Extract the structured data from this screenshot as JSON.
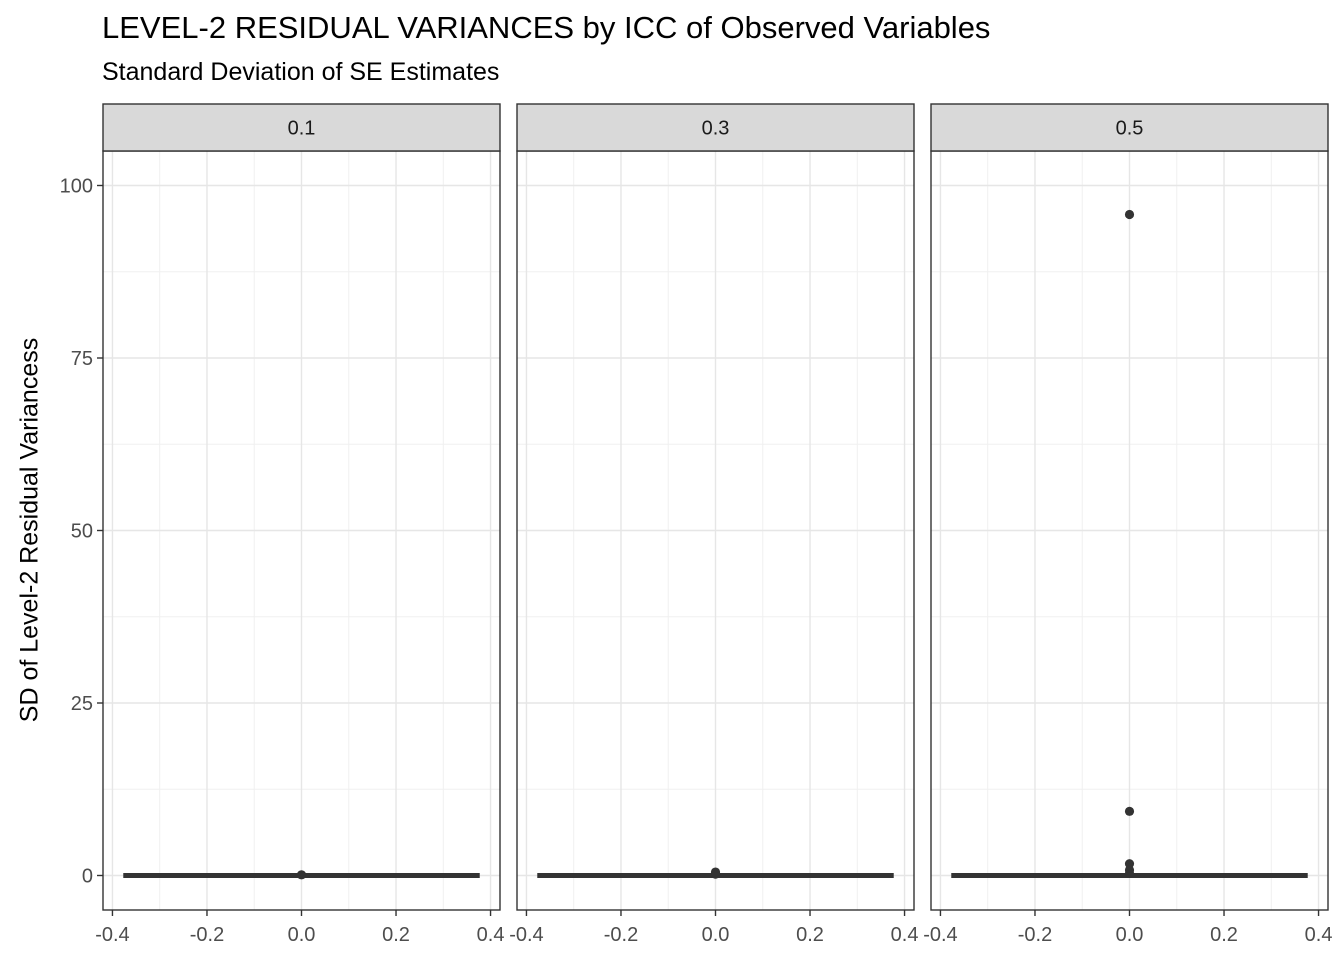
{
  "chart_data": {
    "type": "boxplot",
    "title": "LEVEL-2 RESIDUAL VARIANCES by ICC of Observed Variables",
    "subtitle": "Standard Deviation of SE Estimates",
    "ylabel": "SD of Level-2 Residual Variancess",
    "xlabel": "",
    "ylim": [
      -5,
      105
    ],
    "xlim": [
      -0.4,
      0.4
    ],
    "y_ticks": [
      "0",
      "25",
      "50",
      "75",
      "100"
    ],
    "y_tick_values": [
      0,
      25,
      50,
      75,
      100
    ],
    "x_ticks": [
      "-0.4",
      "-0.2",
      "0.0",
      "0.2",
      "0.4"
    ],
    "x_tick_values": [
      -0.4,
      -0.2,
      0.0,
      0.2,
      0.4
    ],
    "grid": true,
    "box_color": "#333333",
    "strip_fill": "#d9d9d9",
    "panels": [
      {
        "facet": "0.1",
        "median": 0,
        "q1": 0,
        "q3": 0,
        "box_x_range": [
          -0.375,
          0.375
        ],
        "outliers": [
          0.1
        ]
      },
      {
        "facet": "0.3",
        "median": 0,
        "q1": 0,
        "q3": 0,
        "box_x_range": [
          -0.375,
          0.375
        ],
        "outliers": [
          0.2,
          0.5
        ]
      },
      {
        "facet": "0.5",
        "median": 0,
        "q1": 0,
        "q3": 0,
        "box_x_range": [
          -0.375,
          0.375
        ],
        "outliers": [
          95.8,
          9.3,
          1.7,
          0.8,
          0.3
        ]
      }
    ]
  }
}
